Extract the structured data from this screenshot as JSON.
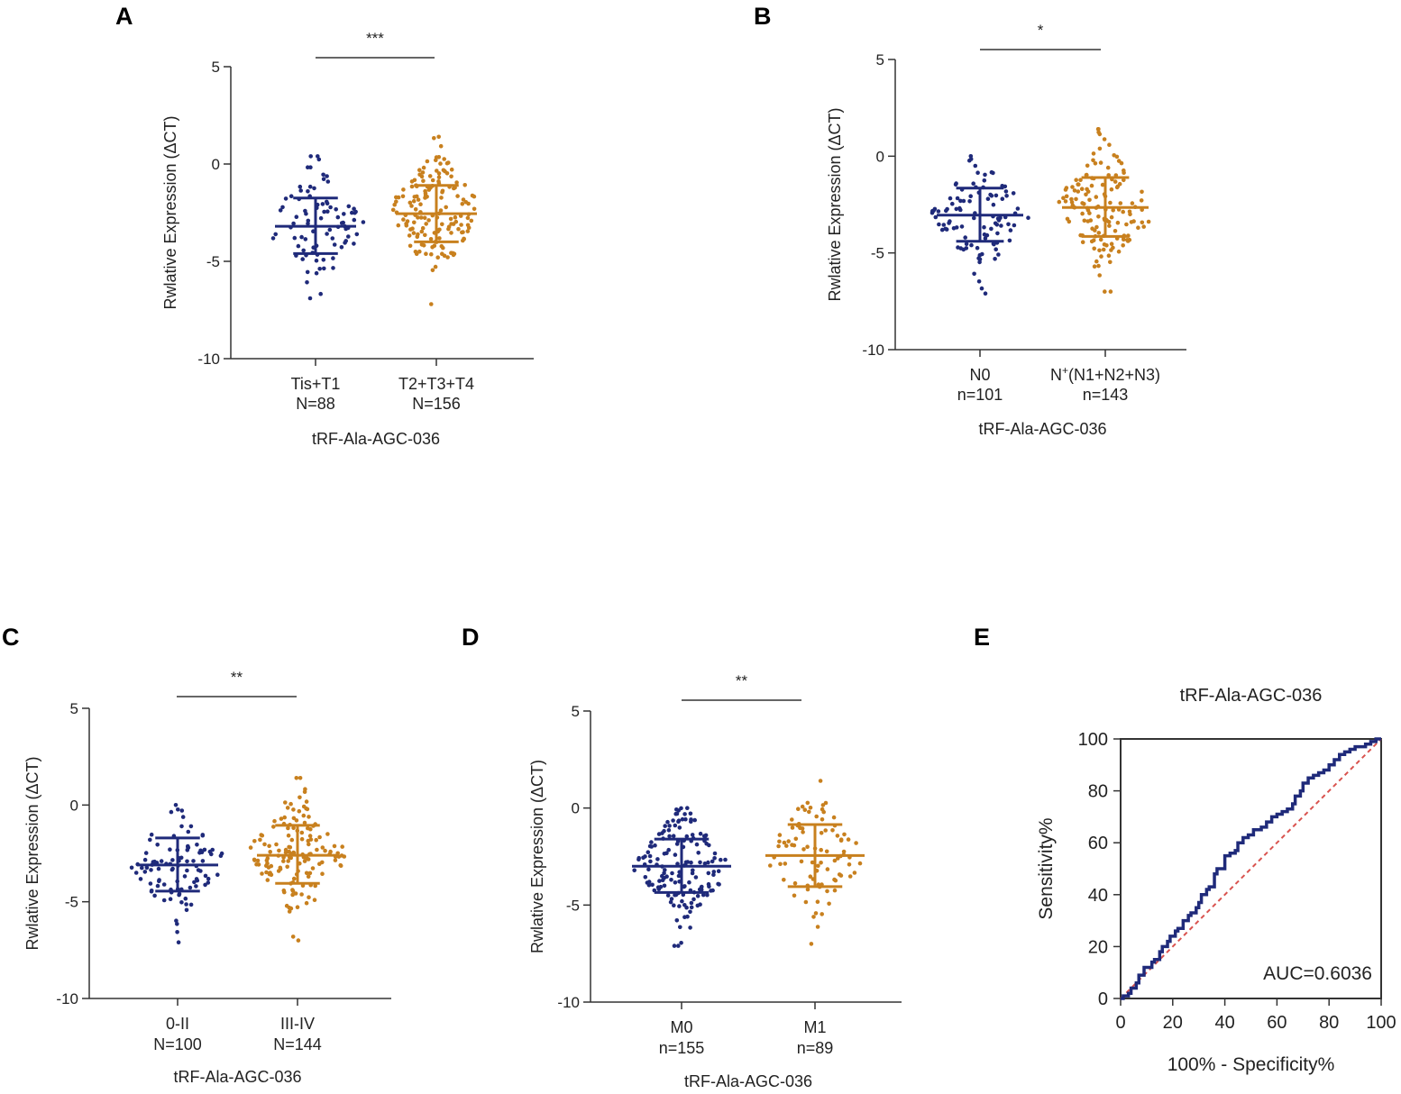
{
  "colors": {
    "group1": "#1f2a7a",
    "group2": "#c8801e",
    "axis": "#333333",
    "diagonal": "#d9534f"
  },
  "chart_data": [
    {
      "panel": "A",
      "type": "scatter",
      "ylabel": "Rwlative Expression (ΔCT)",
      "xlabel": "tRF-Ala-AGC-036",
      "ylim": [
        -10,
        5
      ],
      "yticks": [
        5,
        0,
        -5,
        -10
      ],
      "significance": "***",
      "groups": [
        {
          "name": "Tis+T1",
          "count_label": "N=88",
          "n": 88,
          "mean": -3.2,
          "sd_low": -4.6,
          "sd_high": -1.75,
          "min": -6.9,
          "max": 0.4
        },
        {
          "name": "T2+T3+T4",
          "count_label": "N=156",
          "n": 156,
          "mean": -2.55,
          "sd_low": -4.0,
          "sd_high": -1.1,
          "min": -7.2,
          "max": 1.4
        }
      ]
    },
    {
      "panel": "B",
      "type": "scatter",
      "ylabel": "Rwlative Expression (ΔCT)",
      "xlabel": "tRF-Ala-AGC-036",
      "ylim": [
        -10,
        5
      ],
      "yticks": [
        5,
        0,
        -5,
        -10
      ],
      "significance": "*",
      "groups": [
        {
          "name": "N0",
          "name_sup": "",
          "name_suffix": "",
          "count_label": "n=101",
          "n": 101,
          "mean": -3.05,
          "sd_low": -4.4,
          "sd_high": -1.65,
          "min": -7.1,
          "max": 0.0
        },
        {
          "name": "N",
          "name_sup": "+",
          "name_suffix": "(N1+N2+N3)",
          "count_label": "n=143",
          "n": 143,
          "mean": -2.65,
          "sd_low": -4.15,
          "sd_high": -1.1,
          "min": -7.0,
          "max": 1.4
        }
      ]
    },
    {
      "panel": "C",
      "type": "scatter",
      "ylabel": "Rwlative Expression (ΔCT)",
      "xlabel": "tRF-Ala-AGC-036",
      "ylim": [
        -10,
        5
      ],
      "yticks": [
        5,
        0,
        -5,
        -10
      ],
      "significance": "**",
      "groups": [
        {
          "name": "0-II",
          "count_label": "N=100",
          "n": 100,
          "mean": -3.1,
          "sd_low": -4.45,
          "sd_high": -1.7,
          "min": -7.1,
          "max": 0.0
        },
        {
          "name": "III-IV",
          "count_label": "N=144",
          "n": 144,
          "mean": -2.6,
          "sd_low": -4.05,
          "sd_high": -1.05,
          "min": -7.0,
          "max": 1.4
        }
      ]
    },
    {
      "panel": "D",
      "type": "scatter",
      "ylabel": "Rwlative Expression (ΔCT)",
      "xlabel": "tRF-Ala-AGC-036",
      "ylim": [
        -10,
        5
      ],
      "yticks": [
        5,
        0,
        -5,
        -10
      ],
      "significance": "**",
      "groups": [
        {
          "name": "M0",
          "count_label": "n=155",
          "n": 155,
          "mean": -3.0,
          "sd_low": -4.35,
          "sd_high": -1.6,
          "min": -7.1,
          "max": 0.0
        },
        {
          "name": "M1",
          "count_label": "n=89",
          "n": 89,
          "mean": -2.45,
          "sd_low": -4.05,
          "sd_high": -0.85,
          "min": -7.0,
          "max": 1.4
        }
      ]
    },
    {
      "panel": "E",
      "type": "line",
      "title": "tRF-Ala-AGC-036",
      "xlabel": "100% - Specificity%",
      "ylabel": "Sensitivity%",
      "xlim": [
        0,
        100
      ],
      "ylim": [
        0,
        100
      ],
      "xticks": [
        0,
        20,
        40,
        60,
        80,
        100
      ],
      "yticks": [
        0,
        20,
        40,
        60,
        80,
        100
      ],
      "auc_label": "AUC=0.6036",
      "roc_x": [
        0,
        1,
        3,
        4,
        6,
        7,
        9,
        12,
        13,
        15,
        16,
        18,
        19,
        21,
        22,
        24,
        26,
        27,
        29,
        30,
        31,
        33,
        34,
        36,
        37,
        40,
        42,
        44,
        45,
        47,
        49,
        51,
        54,
        56,
        58,
        60,
        62,
        64,
        66,
        67,
        69,
        70,
        72,
        74,
        76,
        78,
        80,
        82,
        84,
        86,
        88,
        90,
        92,
        94,
        96,
        98,
        100
      ],
      "roc_y": [
        0,
        1,
        2,
        4,
        6,
        9,
        12,
        14,
        15,
        18,
        20,
        22,
        24,
        26,
        27,
        30,
        32,
        33,
        35,
        37,
        40,
        42,
        43,
        48,
        50,
        55,
        56,
        57,
        60,
        62,
        63,
        65,
        66,
        68,
        70,
        71,
        72,
        73,
        75,
        78,
        80,
        83,
        85,
        86,
        87,
        88,
        90,
        92,
        94,
        95,
        96,
        97,
        97,
        98,
        99,
        100,
        100
      ],
      "reference": {
        "x": [
          0,
          100
        ],
        "y": [
          0,
          100
        ]
      }
    }
  ]
}
